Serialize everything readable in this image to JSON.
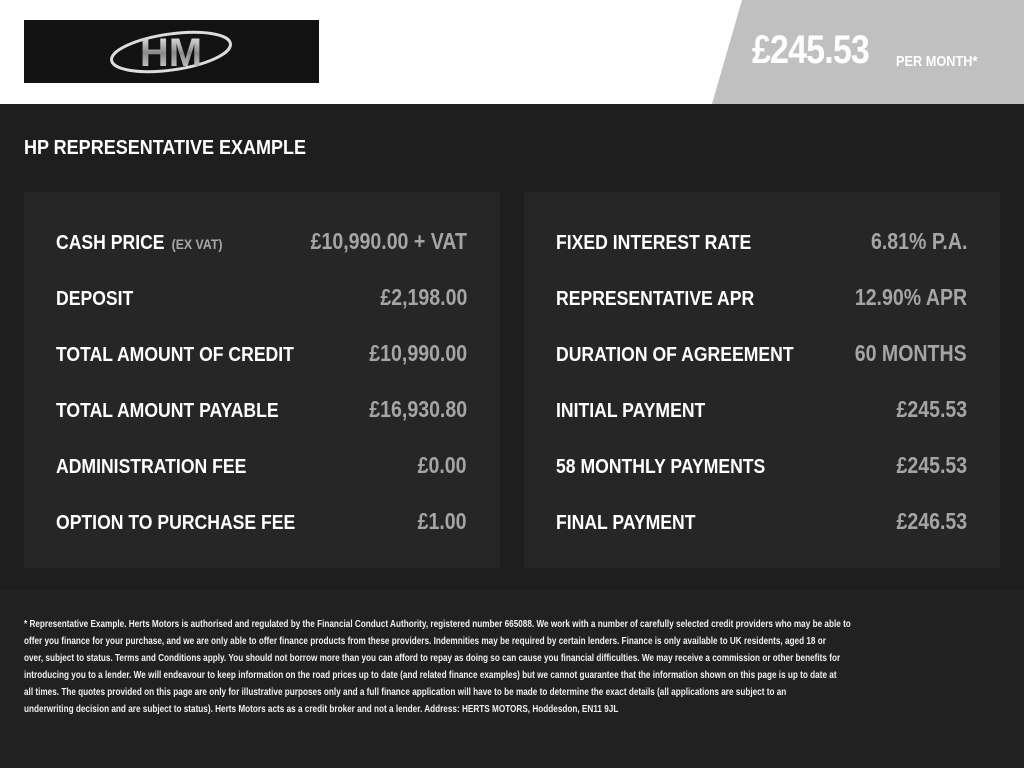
{
  "header": {
    "logo_text": "HM",
    "price": "£245.53",
    "per_month": "PER MONTH*"
  },
  "title": "HP REPRESENTATIVE EXAMPLE",
  "left_panel": [
    {
      "label": "CASH PRICE",
      "note": "(EX VAT)",
      "value": "£10,990.00 + VAT"
    },
    {
      "label": "DEPOSIT",
      "value": "£2,198.00"
    },
    {
      "label": "TOTAL AMOUNT OF CREDIT",
      "value": "£10,990.00"
    },
    {
      "label": "TOTAL AMOUNT PAYABLE",
      "value": "£16,930.80"
    },
    {
      "label": "ADMINISTRATION FEE",
      "value": "£0.00"
    },
    {
      "label": "OPTION TO PURCHASE FEE",
      "value": "£1.00"
    }
  ],
  "right_panel": [
    {
      "label": "FIXED INTEREST RATE",
      "value": "6.81% P.A."
    },
    {
      "label": "REPRESENTATIVE APR",
      "value": "12.90% APR"
    },
    {
      "label": "DURATION OF AGREEMENT",
      "value": "60 MONTHS"
    },
    {
      "label": "INITIAL PAYMENT",
      "value": "£245.53"
    },
    {
      "label": "58 MONTHLY PAYMENTS",
      "value": "£245.53"
    },
    {
      "label": "FINAL PAYMENT",
      "value": "£246.53"
    }
  ],
  "disclaimer": [
    "* Representative Example. Herts Motors is authorised and regulated by the Financial Conduct Authority, registered number 665088. We work with a number of carefully selected credit providers who may be able to",
    "offer you finance for your purchase, and we are only able to offer finance products from these providers. Indemnities may be required by certain lenders. Finance is only available to UK residents, aged 18 or",
    "over, subject to status. Terms and Conditions apply. You should not borrow more than you can afford to repay as doing so can cause you financial difficulties. We may receive a commission or other benefits for",
    "introducing you to a lender. We will endeavour to keep information on the road prices up to date (and related finance examples) but we cannot guarantee that the information shown on this page is up to date at",
    "all times. The quotes provided on this page are only for illustrative purposes only and a full finance application will have to be made to determine the exact details (all applications are subject to an",
    "underwriting decision and are subject to status). Herts Motors acts as a credit broker and not a lender. Address: HERTS MOTORS, Hoddesdon, EN11 9JL"
  ]
}
